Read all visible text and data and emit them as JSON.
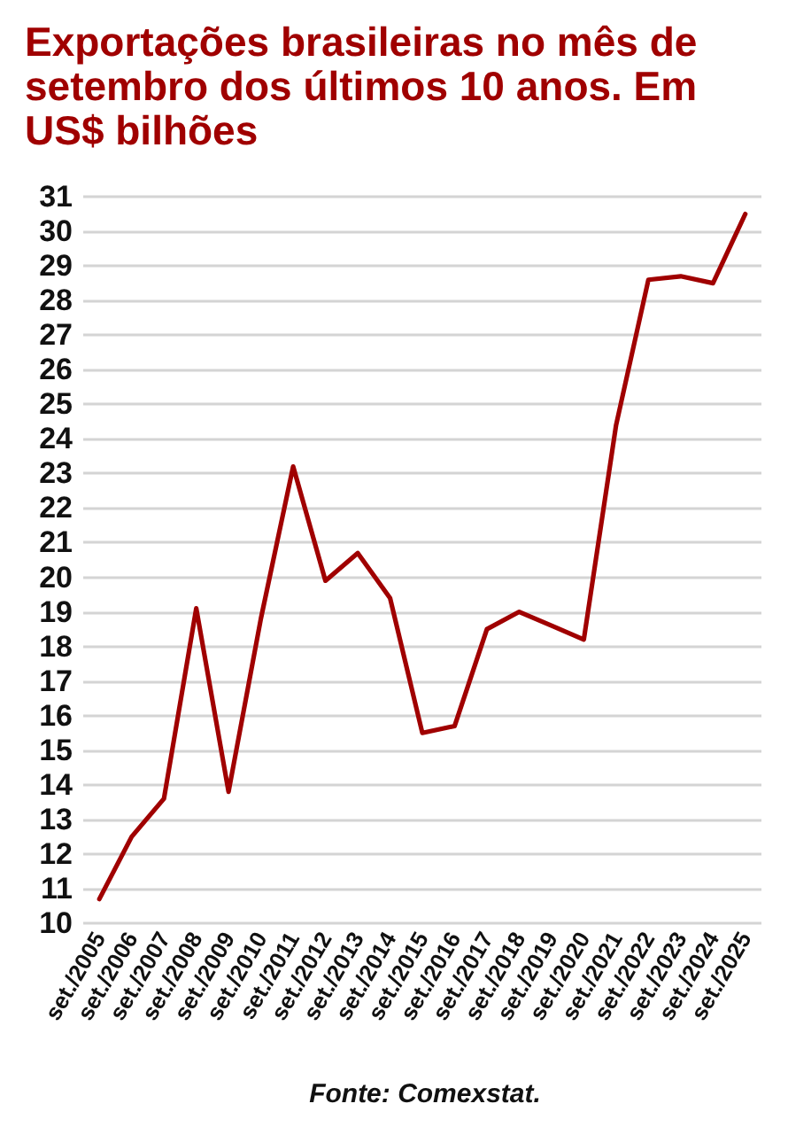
{
  "chart_data": {
    "type": "line",
    "title": "Exportações brasileiras no mês de setembro dos últimos 10 anos. Em US$ bilhões",
    "categories": [
      "set./2005",
      "set./2006",
      "set./2007",
      "set./2008",
      "set./2009",
      "set./2010",
      "set./2011",
      "set./2012",
      "set./2013",
      "set./2014",
      "set./2015",
      "set./2016",
      "set./2017",
      "set./2018",
      "set./2019",
      "set./2020",
      "set./2021",
      "set./2022",
      "set./2023",
      "set./2024",
      "set./2025"
    ],
    "values": [
      10.7,
      12.5,
      13.6,
      19.1,
      13.8,
      18.8,
      23.2,
      19.9,
      20.7,
      19.4,
      15.5,
      15.7,
      18.5,
      19.0,
      18.6,
      18.2,
      24.4,
      28.6,
      28.7,
      28.5,
      30.5
    ],
    "color": "#a00000",
    "ylim": [
      10,
      31
    ],
    "yticks": [
      10,
      11,
      12,
      13,
      14,
      15,
      16,
      17,
      18,
      19,
      20,
      21,
      22,
      23,
      24,
      25,
      26,
      27,
      28,
      29,
      30,
      31
    ],
    "grid": "y",
    "marker": "none",
    "line_style": "solid",
    "annotations": [
      "Fonte: Comexstat."
    ]
  }
}
